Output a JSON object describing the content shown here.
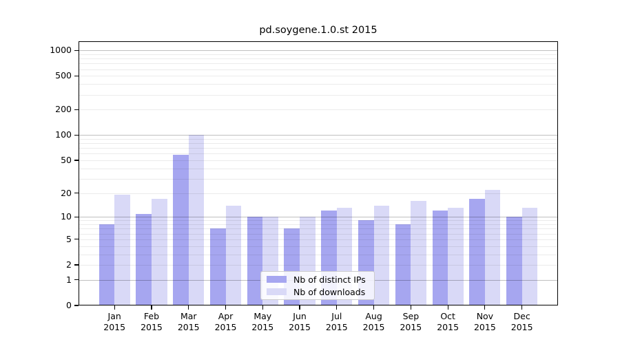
{
  "title": "pd.soygene.1.0.st 2015",
  "legend": {
    "items": [
      {
        "label": "Nb of distinct IPs",
        "color": "#a6a6f0"
      },
      {
        "label": "Nb of downloads",
        "color": "#d9d9f7"
      }
    ]
  },
  "colors": {
    "bar_distinct_ips": "#a6a6f0",
    "bar_downloads": "#d9d9f7",
    "grid_major": "rgba(0,0,0,0.25)",
    "grid_minor": "rgba(0,0,0,0.08)",
    "frame": "#000000",
    "legend_border": "#cccccc",
    "text": "#000000"
  },
  "chart_data": {
    "type": "bar",
    "title": "pd.soygene.1.0.st 2015",
    "categories": [
      "Jan 2015",
      "Feb 2015",
      "Mar 2015",
      "Apr 2015",
      "May 2015",
      "Jun 2015",
      "Jul 2015",
      "Aug 2015",
      "Sep 2015",
      "Oct 2015",
      "Nov 2015",
      "Dec 2015"
    ],
    "category_lines": [
      {
        "month": "Jan",
        "year": "2015"
      },
      {
        "month": "Feb",
        "year": "2015"
      },
      {
        "month": "Mar",
        "year": "2015"
      },
      {
        "month": "Apr",
        "year": "2015"
      },
      {
        "month": "May",
        "year": "2015"
      },
      {
        "month": "Jun",
        "year": "2015"
      },
      {
        "month": "Jul",
        "year": "2015"
      },
      {
        "month": "Aug",
        "year": "2015"
      },
      {
        "month": "Sep",
        "year": "2015"
      },
      {
        "month": "Oct",
        "year": "2015"
      },
      {
        "month": "Nov",
        "year": "2015"
      },
      {
        "month": "Dec",
        "year": "2015"
      }
    ],
    "series": [
      {
        "name": "Nb of distinct IPs",
        "color": "#a6a6f0",
        "values": [
          8,
          11,
          58,
          7,
          10,
          7,
          12,
          9,
          8,
          12,
          17,
          10
        ]
      },
      {
        "name": "Nb of downloads",
        "color": "#d9d9f7",
        "values": [
          19,
          17,
          100,
          14,
          10,
          10,
          13,
          14,
          16,
          13,
          22,
          13
        ]
      }
    ],
    "xlabel": "",
    "ylabel": "",
    "y_scale": "log10(1+y)",
    "y_ticks": [
      0,
      1,
      2,
      5,
      10,
      20,
      50,
      100,
      200,
      500,
      1000
    ],
    "y_major_gridlines": [
      1,
      10,
      100,
      1000
    ],
    "ylim": [
      0,
      1200
    ],
    "grid": true,
    "legend_position": "lower center inside plot"
  }
}
